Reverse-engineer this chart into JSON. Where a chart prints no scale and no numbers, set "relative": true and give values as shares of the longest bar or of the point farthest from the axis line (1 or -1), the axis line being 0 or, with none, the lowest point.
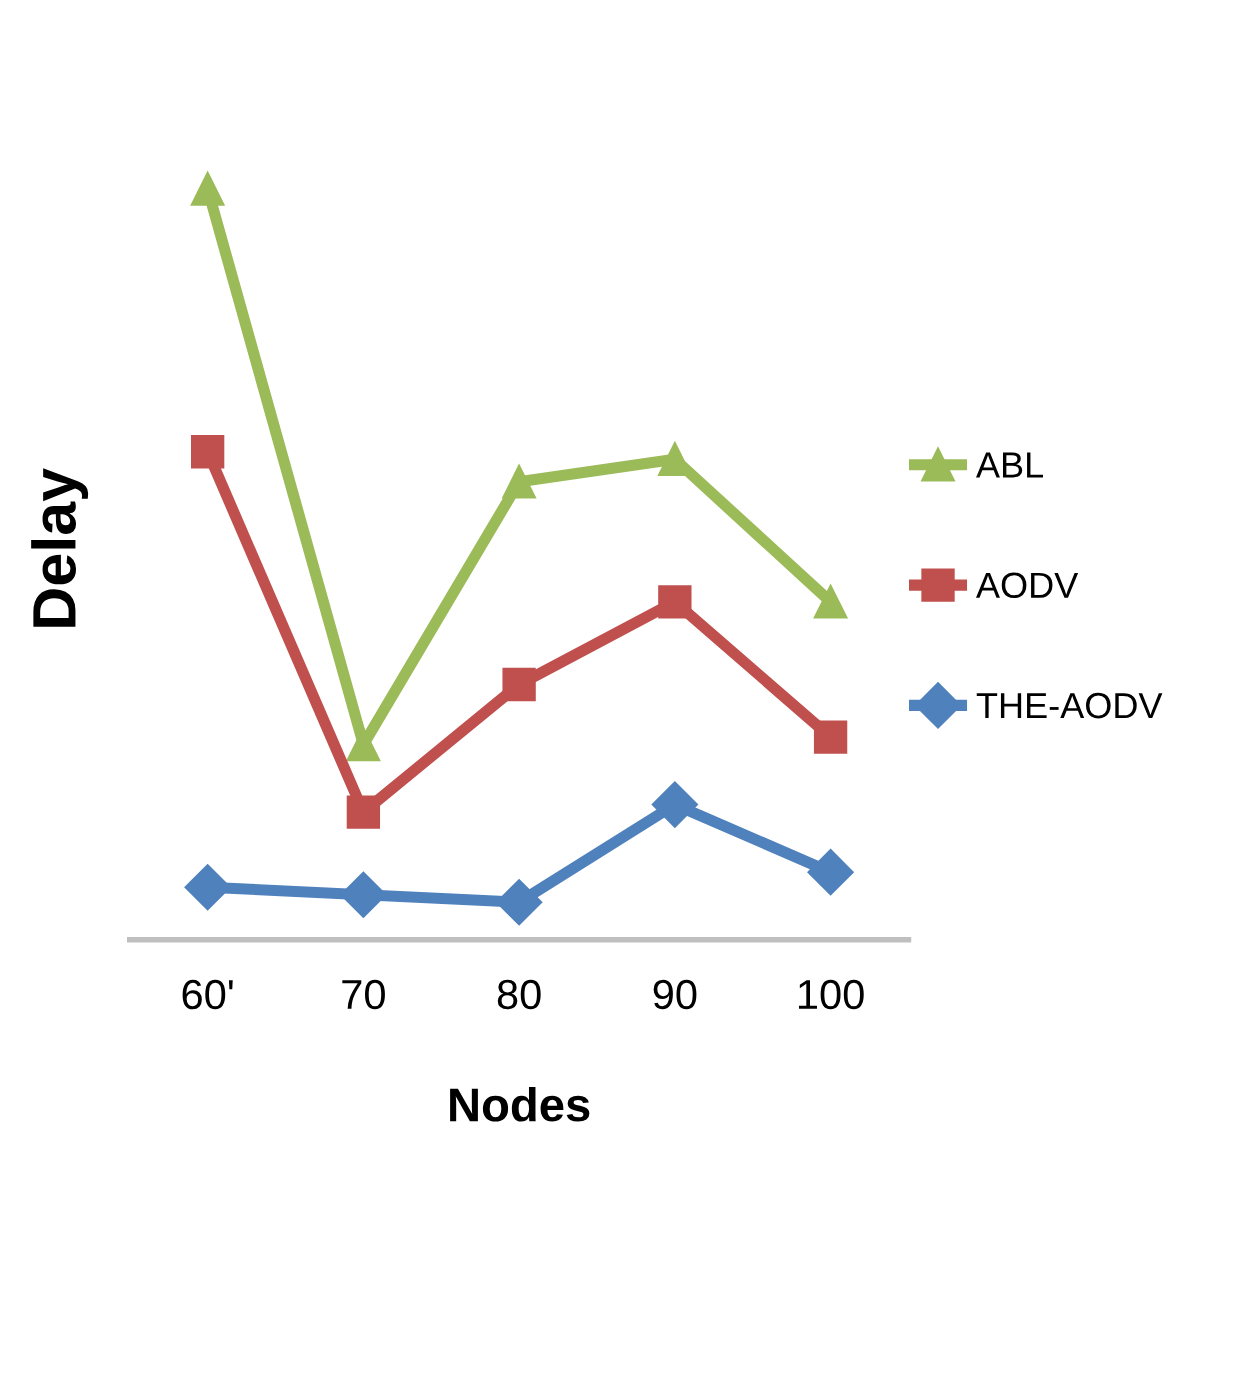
{
  "chart_data": {
    "type": "line",
    "relative": true,
    "xlabel": "Nodes",
    "ylabel": "Delay",
    "categories": [
      "60'",
      "70",
      "80",
      "90",
      "100"
    ],
    "legend": "right",
    "grid": false,
    "series": [
      {
        "name": "ABL",
        "color": "#9bbb59",
        "marker": "triangle",
        "values": [
          1,
          0.26,
          0.61,
          0.64,
          0.45
        ]
      },
      {
        "name": "AODV",
        "color": "#c0504d",
        "marker": "square",
        "values": [
          0.65,
          0.17,
          0.34,
          0.45,
          0.27
        ]
      },
      {
        "name": "THE-AODV",
        "color": "#4f81bd",
        "marker": "diamond",
        "values": [
          0.07,
          0.06,
          0.05,
          0.18,
          0.09
        ]
      }
    ]
  }
}
